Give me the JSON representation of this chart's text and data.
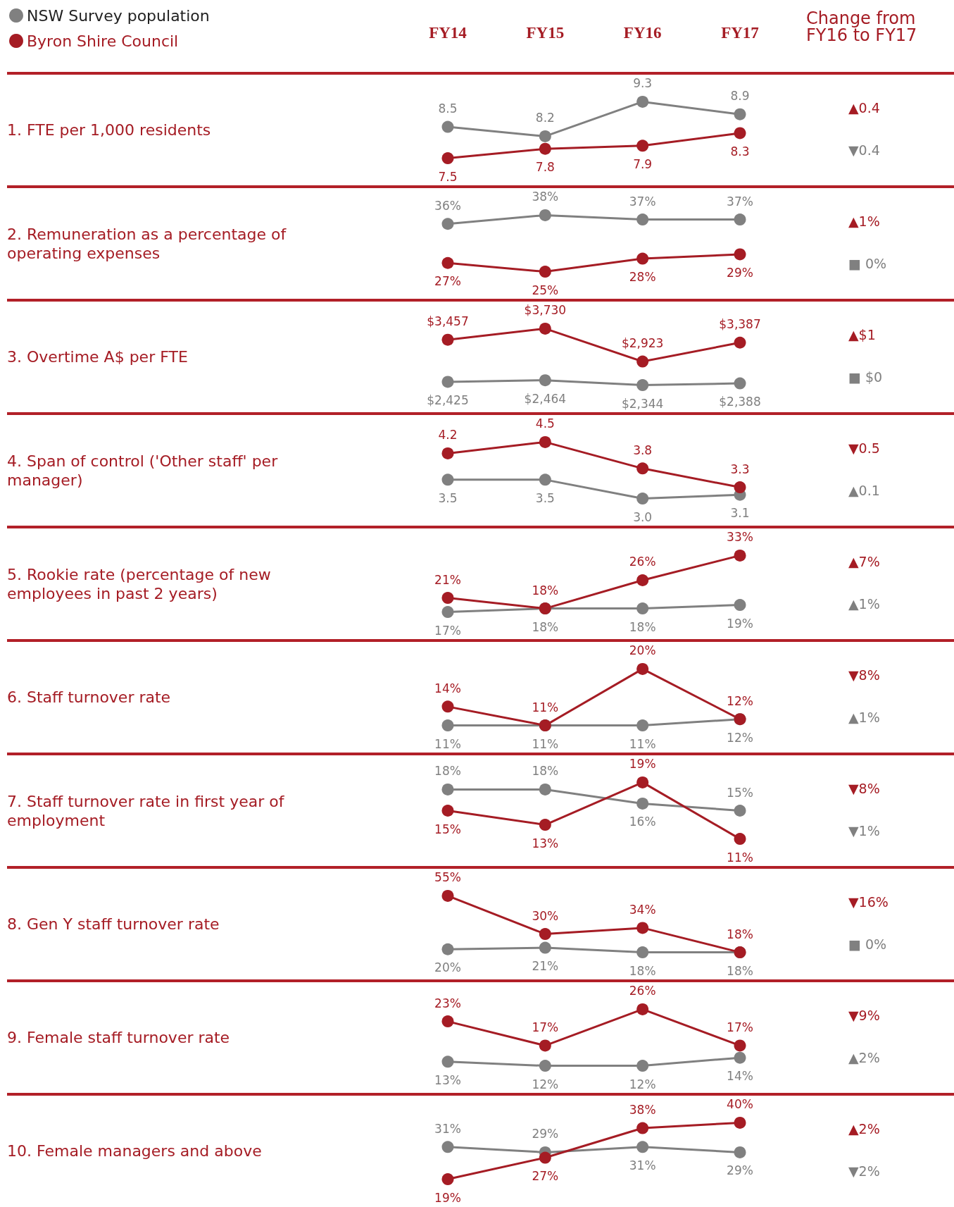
{
  "chart_data": [
    {
      "type": "line",
      "ylabel": "1. FTE per 1,000 residents",
      "categories": [
        "FY14",
        "FY15",
        "FY16",
        "FY17"
      ],
      "legend": "top left",
      "tick_labels": "x",
      "marker": "circle",
      "line_style": "solid",
      "annotations": [
        "Change from FY16 to FY17",
        "▲0.4",
        "▼0.4"
      ],
      "series": [
        {
          "name": "NSW Survey population",
          "color": "#808080",
          "values": [
            8.5,
            8.2,
            9.3,
            8.9
          ],
          "value_labels": [
            "8.5",
            "8.2",
            "9.3",
            "8.9"
          ]
        },
        {
          "name": "Byron Shire Council",
          "color": "#a51c24",
          "values": [
            7.5,
            7.8,
            7.9,
            8.3
          ],
          "value_labels": [
            "7.5",
            "7.8",
            "7.9",
            "8.3"
          ]
        }
      ]
    },
    {
      "type": "line",
      "ylabel": "2. Remuneration as a percentage of operating expenses",
      "categories": [
        null,
        null,
        null,
        null
      ],
      "marker": "circle",
      "line_style": "solid",
      "annotations": [
        "▲1%",
        "■ 0%"
      ],
      "series": [
        {
          "color": "#808080",
          "values": [
            36,
            38,
            37,
            37
          ],
          "value_labels": [
            "36%",
            "38%",
            "37%",
            "37%"
          ]
        },
        {
          "color": "#a51c24",
          "values": [
            27,
            25,
            28,
            29
          ],
          "value_labels": [
            "27%",
            "25%",
            "28%",
            "29%"
          ]
        }
      ]
    },
    {
      "type": "line",
      "ylabel": "3. Overtime A$ per FTE",
      "categories": [
        null,
        null,
        null,
        null
      ],
      "marker": "circle",
      "line_style": "solid",
      "annotations": [
        "▲$1",
        "■ $0"
      ],
      "series": [
        {
          "color": "#808080",
          "values": [
            2425,
            2464,
            2344,
            2388
          ],
          "value_labels": [
            "$2,425",
            "$2,464",
            "$2,344",
            "$2,388"
          ]
        },
        {
          "color": "#a51c24",
          "values": [
            3457,
            3730,
            2923,
            3387
          ],
          "value_labels": [
            "$3,457",
            "$3,730",
            "$2,923",
            "$3,387"
          ]
        }
      ]
    },
    {
      "type": "line",
      "ylabel": "4. Span of control ('Other staff' per manager)",
      "categories": [
        null,
        null,
        null,
        null
      ],
      "marker": "circle",
      "line_style": "solid",
      "annotations": [
        "▼0.5",
        "▲0.1"
      ],
      "series": [
        {
          "color": "#808080",
          "values": [
            3.5,
            3.5,
            3.0,
            3.1
          ],
          "value_labels": [
            "3.5",
            "3.5",
            "3.0",
            "3.1"
          ]
        },
        {
          "color": "#a51c24",
          "values": [
            4.2,
            4.5,
            3.8,
            3.3
          ],
          "value_labels": [
            "4.2",
            "4.5",
            "3.8",
            "3.3"
          ]
        }
      ]
    },
    {
      "type": "line",
      "ylabel": "5. Rookie rate (percentage of new employees in past 2 years)",
      "categories": [
        null,
        null,
        null,
        null
      ],
      "marker": "circle",
      "line_style": "solid",
      "annotations": [
        "▲7%",
        "▲1%"
      ],
      "series": [
        {
          "color": "#808080",
          "values": [
            17,
            18,
            18,
            19
          ],
          "value_labels": [
            "17%",
            "18%",
            "18%",
            "19%"
          ]
        },
        {
          "color": "#a51c24",
          "values": [
            21,
            18,
            26,
            33
          ],
          "value_labels": [
            "21%",
            "18%",
            "26%",
            "33%"
          ]
        }
      ]
    },
    {
      "type": "line",
      "ylabel": "6. Staff turnover rate",
      "categories": [
        null,
        null,
        null,
        null
      ],
      "marker": "circle",
      "line_style": "solid",
      "annotations": [
        "▼8%",
        "▲1%"
      ],
      "series": [
        {
          "color": "#808080",
          "values": [
            11,
            11,
            11,
            12
          ],
          "value_labels": [
            "11%",
            "11%",
            "11%",
            "12%"
          ]
        },
        {
          "color": "#a51c24",
          "values": [
            14,
            11,
            20,
            12
          ],
          "value_labels": [
            "14%",
            "11%",
            "20%",
            "12%"
          ]
        }
      ]
    },
    {
      "type": "line",
      "ylabel": "7. Staff turnover rate in first year of employment",
      "categories": [
        null,
        null,
        null,
        null
      ],
      "marker": "circle",
      "line_style": "solid",
      "annotations": [
        "▼8%",
        "▼1%"
      ],
      "series": [
        {
          "color": "#808080",
          "values": [
            18,
            18,
            16,
            15
          ],
          "value_labels": [
            "18%",
            "18%",
            "16%",
            "15%"
          ]
        },
        {
          "color": "#a51c24",
          "values": [
            15,
            13,
            19,
            11
          ],
          "value_labels": [
            "15%",
            "13%",
            "19%",
            "11%"
          ]
        }
      ]
    },
    {
      "type": "line",
      "ylabel": "8. Gen Y staff turnover rate",
      "categories": [
        null,
        null,
        null,
        null
      ],
      "marker": "circle",
      "line_style": "solid",
      "annotations": [
        "▼16%",
        "■ 0%"
      ],
      "series": [
        {
          "color": "#808080",
          "values": [
            20,
            21,
            18,
            18
          ],
          "value_labels": [
            "20%",
            "21%",
            "18%",
            "18%"
          ]
        },
        {
          "color": "#a51c24",
          "values": [
            55,
            30,
            34,
            18
          ],
          "value_labels": [
            "55%",
            "30%",
            "34%",
            "18%"
          ]
        }
      ]
    },
    {
      "type": "line",
      "ylabel": "9. Female staff turnover rate",
      "categories": [
        null,
        null,
        null,
        null
      ],
      "marker": "circle",
      "line_style": "solid",
      "annotations": [
        "▼9%",
        "▲2%"
      ],
      "series": [
        {
          "color": "#808080",
          "values": [
            13,
            12,
            12,
            14
          ],
          "value_labels": [
            "13%",
            "12%",
            "12%",
            "14%"
          ]
        },
        {
          "color": "#a51c24",
          "values": [
            23,
            17,
            26,
            17
          ],
          "value_labels": [
            "23%",
            "17%",
            "26%",
            "17%"
          ]
        }
      ]
    },
    {
      "type": "line",
      "ylabel": "10. Female managers and above",
      "categories": [
        null,
        null,
        null,
        null
      ],
      "marker": "circle",
      "line_style": "solid",
      "annotations": [
        "▲2%",
        "▼2%"
      ],
      "series": [
        {
          "color": "#808080",
          "values": [
            31,
            29,
            31,
            29
          ],
          "value_labels": [
            "31%",
            "29%",
            "31%",
            "29%"
          ]
        },
        {
          "color": "#a51c24",
          "values": [
            19,
            27,
            38,
            40
          ],
          "value_labels": [
            "19%",
            "27%",
            "38%",
            "40%"
          ]
        }
      ]
    }
  ]
}
